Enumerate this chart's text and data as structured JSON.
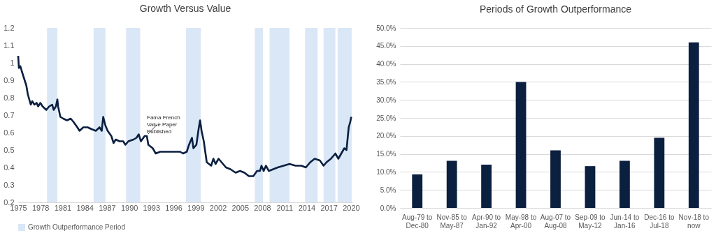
{
  "chart_data": [
    {
      "type": "line",
      "title": "Growth Versus Value",
      "x": [
        1975.0,
        1975.1,
        1975.3,
        1975.5,
        1975.8,
        1976.1,
        1976.3,
        1976.5,
        1976.7,
        1976.9,
        1977.2,
        1977.5,
        1977.7,
        1978.0,
        1978.3,
        1978.8,
        1979.2,
        1979.6,
        1979.8,
        1980.1,
        1980.3,
        1980.4,
        1980.7,
        1981.1,
        1981.6,
        1982.1,
        1982.5,
        1983.0,
        1983.3,
        1983.8,
        1984.4,
        1984.9,
        1985.5,
        1986.0,
        1986.3,
        1986.5,
        1986.8,
        1987.1,
        1987.6,
        1987.9,
        1988.2,
        1988.7,
        1989.2,
        1989.5,
        1989.9,
        1990.6,
        1991.0,
        1991.3,
        1991.6,
        1992.1,
        1992.4,
        1992.6,
        1993.2,
        1993.6,
        1994.2,
        1995.0,
        1995.8,
        1996.9,
        1997.3,
        1997.8,
        1998.1,
        1998.5,
        1998.7,
        1999.1,
        1999.4,
        1999.6,
        1999.8,
        2000.1,
        2000.5,
        2000.8,
        2001.1,
        2001.4,
        2001.7,
        2002.1,
        2002.5,
        2003.1,
        2003.7,
        2004.4,
        2005.0,
        2005.6,
        2006.2,
        2006.8,
        2007.3,
        2007.7,
        2007.9,
        2008.2,
        2008.5,
        2008.9,
        2009.5,
        2010.1,
        2010.9,
        2011.7,
        2012.5,
        2013.3,
        2013.9,
        2014.5,
        2015.1,
        2015.8,
        2016.3,
        2016.7,
        2017.3,
        2017.9,
        2018.3,
        2018.7,
        2019.1,
        2019.4,
        2019.7,
        2019.9,
        2020.05
      ],
      "series": [
        {
          "color": "#0b1f3f",
          "values": [
            1.04,
            0.97,
            0.98,
            0.95,
            0.91,
            0.87,
            0.82,
            0.79,
            0.76,
            0.78,
            0.76,
            0.77,
            0.75,
            0.77,
            0.75,
            0.73,
            0.75,
            0.76,
            0.73,
            0.75,
            0.79,
            0.75,
            0.69,
            0.68,
            0.67,
            0.68,
            0.66,
            0.63,
            0.61,
            0.63,
            0.63,
            0.62,
            0.61,
            0.63,
            0.61,
            0.69,
            0.64,
            0.61,
            0.58,
            0.54,
            0.56,
            0.55,
            0.55,
            0.53,
            0.55,
            0.56,
            0.57,
            0.59,
            0.55,
            0.58,
            0.58,
            0.53,
            0.51,
            0.48,
            0.49,
            0.49,
            0.49,
            0.49,
            0.48,
            0.49,
            0.53,
            0.57,
            0.51,
            0.53,
            0.62,
            0.67,
            0.61,
            0.55,
            0.43,
            0.42,
            0.41,
            0.45,
            0.42,
            0.45,
            0.43,
            0.4,
            0.39,
            0.37,
            0.38,
            0.37,
            0.35,
            0.35,
            0.38,
            0.38,
            0.41,
            0.38,
            0.41,
            0.38,
            0.39,
            0.4,
            0.41,
            0.42,
            0.41,
            0.41,
            0.4,
            0.43,
            0.45,
            0.44,
            0.41,
            0.43,
            0.45,
            0.48,
            0.45,
            0.48,
            0.51,
            0.5,
            0.63,
            0.66,
            0.69
          ]
        }
      ],
      "xlim": [
        1975,
        2020.2
      ],
      "xticks": [
        1975,
        1978,
        1981,
        1984,
        1987,
        1990,
        1993,
        1996,
        1999,
        2002,
        2005,
        2008,
        2011,
        2014,
        2017,
        2020
      ],
      "ylim": [
        0.2,
        1.2
      ],
      "yticks": [
        0.2,
        0.3,
        0.4,
        0.5,
        0.6,
        0.7,
        0.8,
        0.9,
        1,
        1.1,
        1.2
      ],
      "bands": [
        {
          "axis": "x",
          "from": 1978.9,
          "to": 1980.3,
          "label": "Growth Outperformance Period",
          "color": "#dae7f6"
        },
        {
          "axis": "x",
          "from": 1985.2,
          "to": 1986.8,
          "color": "#dae7f6"
        },
        {
          "axis": "x",
          "from": 1989.6,
          "to": 1991.5,
          "color": "#dae7f6"
        },
        {
          "axis": "x",
          "from": 1997.7,
          "to": 1999.7,
          "color": "#dae7f6"
        },
        {
          "axis": "x",
          "from": 2007.0,
          "to": 2008.1,
          "color": "#dae7f6"
        },
        {
          "axis": "x",
          "from": 2009.0,
          "to": 2011.7,
          "color": "#dae7f6"
        },
        {
          "axis": "x",
          "from": 2013.8,
          "to": 2015.5,
          "color": "#dae7f6"
        },
        {
          "axis": "x",
          "from": 2016.3,
          "to": 2017.9,
          "color": "#dae7f6"
        },
        {
          "axis": "x",
          "from": 2018.2,
          "to": 2020.1,
          "color": "#dae7f6"
        }
      ],
      "annotations": [
        {
          "text": "Fama French Value Paper Published",
          "x": 1992.4,
          "y": 0.58
        }
      ],
      "legend": "bottom"
    },
    {
      "type": "bar",
      "title": "Periods of Growth Outperformance",
      "categories": [
        "Aug-79 to Dec-80",
        "Nov-85 to May-87",
        "Apr-90 to Jan-92",
        "May-98 to Apr-00",
        "Aug-07 to Aug-08",
        "Sep-09 to May-12",
        "Jun-14 to Jan-16",
        "Dec-16 to Jul-18",
        "Nov-18 to now"
      ],
      "series": [
        {
          "color": "#0b1f3f",
          "values": [
            9.3,
            13.1,
            12.0,
            35.0,
            16.0,
            11.6,
            13.1,
            19.5,
            46.0
          ]
        }
      ],
      "ylim": [
        0,
        50
      ],
      "yticks": [
        {
          "value": 0,
          "label": "0.0%"
        },
        {
          "value": 5,
          "label": "5.0%"
        },
        {
          "value": 10,
          "label": "10.0%"
        },
        {
          "value": 15,
          "label": "15.0%"
        },
        {
          "value": 20,
          "label": "20.0%"
        },
        {
          "value": 25,
          "label": "25.0%"
        },
        {
          "value": 30,
          "label": "30.0%"
        },
        {
          "value": 35,
          "label": "35.0%"
        },
        {
          "value": 40,
          "label": "40.0%"
        },
        {
          "value": 45,
          "label": "45.0%"
        },
        {
          "value": 50,
          "label": "50.0%"
        }
      ],
      "grid": "y"
    }
  ]
}
